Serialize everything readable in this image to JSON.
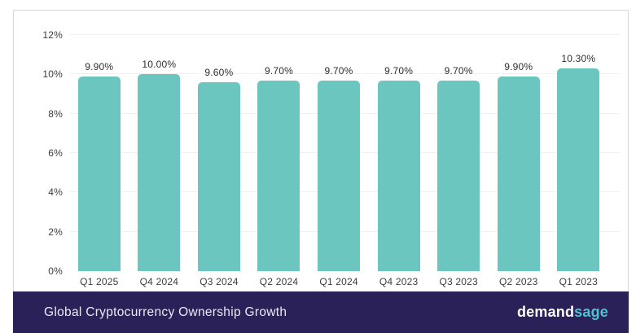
{
  "chart_data": {
    "type": "bar",
    "title": "Global Cryptocurrency Ownership Growth",
    "categories": [
      "Q1 2025",
      "Q4 2024",
      "Q3 2024",
      "Q2 2024",
      "Q1 2024",
      "Q4 2023",
      "Q3 2023",
      "Q2 2023",
      "Q1 2023"
    ],
    "values": [
      9.9,
      10.0,
      9.6,
      9.7,
      9.7,
      9.7,
      9.7,
      9.9,
      10.3
    ],
    "bar_labels": [
      "9.90%",
      "10.00%",
      "9.60%",
      "9.70%",
      "9.70%",
      "9.70%",
      "9.70%",
      "9.90%",
      "10.30%"
    ],
    "xlabel": "",
    "ylabel": "",
    "ylim": [
      0,
      12
    ],
    "yticks": [
      {
        "value": 0,
        "label": "0%"
      },
      {
        "value": 2,
        "label": "2%"
      },
      {
        "value": 4,
        "label": "4%"
      },
      {
        "value": 6,
        "label": "6%"
      },
      {
        "value": 8,
        "label": "8%"
      },
      {
        "value": 10,
        "label": "10%"
      },
      {
        "value": 12,
        "label": "12%"
      }
    ],
    "grid": true,
    "legend": "none",
    "bar_color": "#6AC6BE"
  },
  "footer": {
    "title": "Global Cryptocurrency Ownership Growth",
    "brand": {
      "part1": "demand",
      "part2": "sage"
    },
    "colors": {
      "background": "#2B2159",
      "brand_accent": "#4EC3CE",
      "title_text": "#ECEAF4"
    }
  }
}
